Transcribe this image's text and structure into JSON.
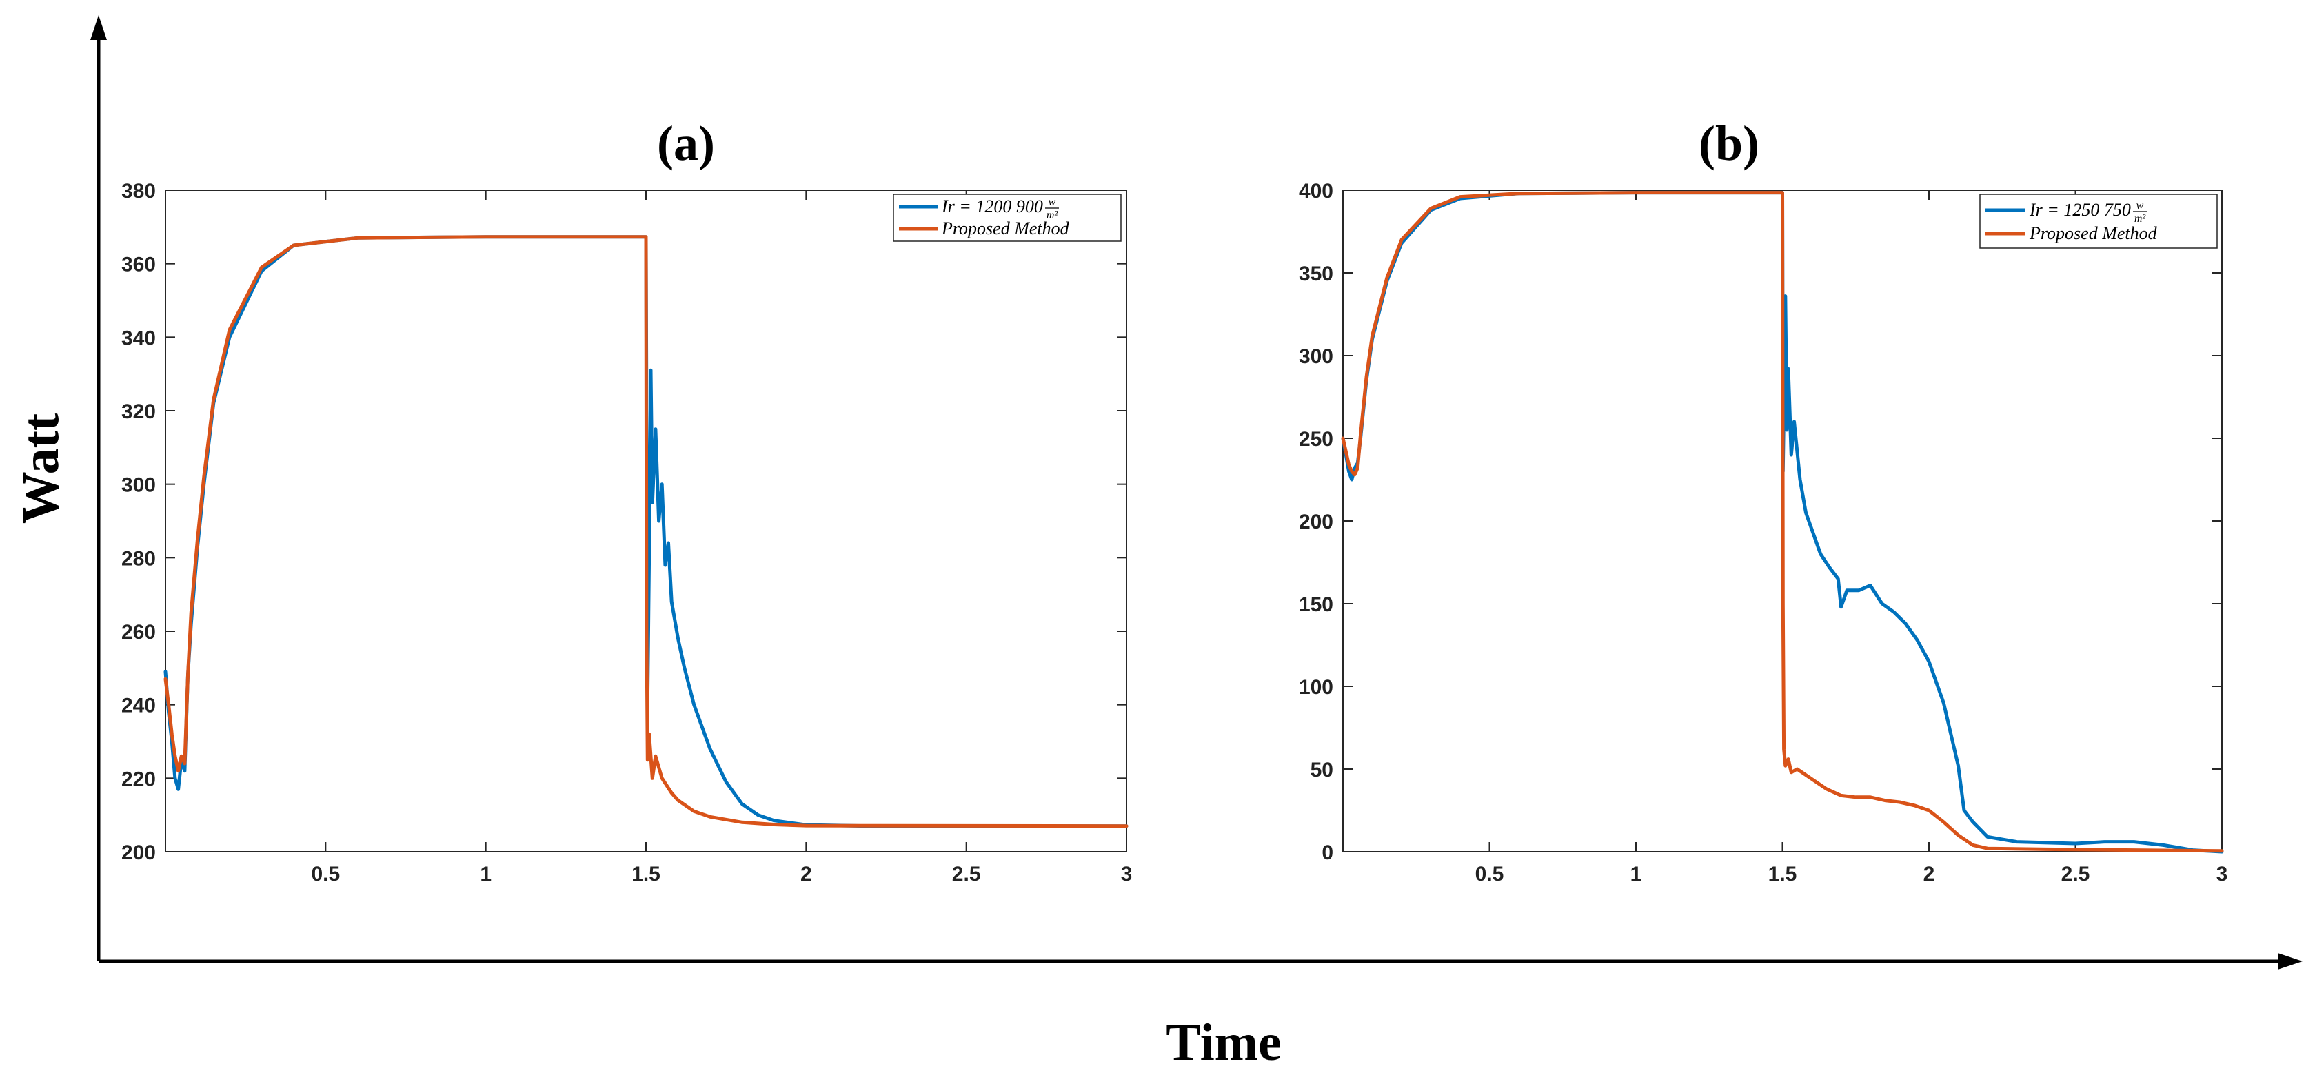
{
  "figure": {
    "outer_xlabel": "Time",
    "outer_ylabel": "Watt"
  },
  "colors": {
    "series_blue": "#0072BD",
    "series_orange": "#D95319",
    "axis": "#000000",
    "tick": "#262626"
  },
  "chart_data": [
    {
      "type": "line",
      "title": "(a)",
      "xlabel": "",
      "ylabel": "",
      "xlim": [
        0,
        3
      ],
      "ylim": [
        200,
        380
      ],
      "xticks": [
        0.5,
        1,
        1.5,
        2,
        2.5,
        3
      ],
      "xtick_labels": [
        "0.5",
        "1",
        "1.5",
        "2",
        "2.5",
        "3"
      ],
      "yticks": [
        200,
        220,
        240,
        260,
        280,
        300,
        320,
        340,
        360,
        380
      ],
      "ytick_labels": [
        "200",
        "220",
        "240",
        "260",
        "280",
        "300",
        "320",
        "340",
        "360",
        "380"
      ],
      "legend_position": "top-right",
      "series": [
        {
          "name": "Ir = 1200 900 w/m²",
          "legend_main": "Ir = 1200 900",
          "legend_frac_num": "w",
          "legend_frac_den": "m²",
          "color": "#0072BD",
          "points": [
            [
              0,
              249
            ],
            [
              0.01,
              238
            ],
            [
              0.02,
              230
            ],
            [
              0.03,
              220
            ],
            [
              0.04,
              217
            ],
            [
              0.05,
              225
            ],
            [
              0.06,
              222
            ],
            [
              0.07,
              248
            ],
            [
              0.08,
              262
            ],
            [
              0.1,
              283
            ],
            [
              0.12,
              300
            ],
            [
              0.15,
              322
            ],
            [
              0.2,
              340
            ],
            [
              0.3,
              358
            ],
            [
              0.4,
              365
            ],
            [
              0.6,
              367
            ],
            [
              1.0,
              367.3
            ],
            [
              1.49,
              367.3
            ],
            [
              1.5,
              367.3
            ],
            [
              1.505,
              240
            ],
            [
              1.51,
              280
            ],
            [
              1.515,
              331
            ],
            [
              1.52,
              295
            ],
            [
              1.53,
              315
            ],
            [
              1.54,
              290
            ],
            [
              1.55,
              300
            ],
            [
              1.56,
              278
            ],
            [
              1.57,
              284
            ],
            [
              1.58,
              268
            ],
            [
              1.6,
              258
            ],
            [
              1.62,
              250
            ],
            [
              1.65,
              240
            ],
            [
              1.7,
              228
            ],
            [
              1.75,
              219
            ],
            [
              1.8,
              213
            ],
            [
              1.85,
              210
            ],
            [
              1.9,
              208.5
            ],
            [
              2.0,
              207.3
            ],
            [
              2.2,
              207
            ],
            [
              3.0,
              207
            ]
          ]
        },
        {
          "name": "Proposed Method",
          "legend_main": "Proposed Method",
          "color": "#D95319",
          "points": [
            [
              0,
              247
            ],
            [
              0.01,
              240
            ],
            [
              0.02,
              232
            ],
            [
              0.03,
              226
            ],
            [
              0.04,
              222
            ],
            [
              0.05,
              226
            ],
            [
              0.06,
              224
            ],
            [
              0.07,
              248
            ],
            [
              0.08,
              265
            ],
            [
              0.1,
              285
            ],
            [
              0.12,
              302
            ],
            [
              0.15,
              323
            ],
            [
              0.2,
              342
            ],
            [
              0.3,
              359
            ],
            [
              0.4,
              365
            ],
            [
              0.6,
              367
            ],
            [
              1.0,
              367.3
            ],
            [
              1.49,
              367.3
            ],
            [
              1.5,
              367.3
            ],
            [
              1.502,
              260
            ],
            [
              1.505,
              225
            ],
            [
              1.51,
              232
            ],
            [
              1.52,
              220
            ],
            [
              1.53,
              226
            ],
            [
              1.55,
              220
            ],
            [
              1.58,
              216
            ],
            [
              1.6,
              214
            ],
            [
              1.65,
              211
            ],
            [
              1.7,
              209.5
            ],
            [
              1.8,
              208
            ],
            [
              1.9,
              207.4
            ],
            [
              2.0,
              207.1
            ],
            [
              3.0,
              207
            ]
          ]
        }
      ]
    },
    {
      "type": "line",
      "title": "(b)",
      "xlabel": "",
      "ylabel": "",
      "xlim": [
        0,
        3
      ],
      "ylim": [
        0,
        400
      ],
      "xticks": [
        0.5,
        1,
        1.5,
        2,
        2.5,
        3
      ],
      "xtick_labels": [
        "0.5",
        "1",
        "1.5",
        "2",
        "2.5",
        "3"
      ],
      "yticks": [
        0,
        50,
        100,
        150,
        200,
        250,
        300,
        350,
        400
      ],
      "ytick_labels": [
        "0",
        "50",
        "100",
        "150",
        "200",
        "250",
        "300",
        "350",
        "400"
      ],
      "legend_position": "top-right",
      "series": [
        {
          "name": "Ir = 1250 750 w/m²",
          "legend_main": "Ir = 1250 750",
          "legend_frac_num": "w",
          "legend_frac_den": "m²",
          "color": "#0072BD",
          "points": [
            [
              0,
              250
            ],
            [
              0.01,
              240
            ],
            [
              0.02,
              230
            ],
            [
              0.03,
              225
            ],
            [
              0.04,
              232
            ],
            [
              0.05,
              235
            ],
            [
              0.06,
              250
            ],
            [
              0.08,
              285
            ],
            [
              0.1,
              310
            ],
            [
              0.15,
              345
            ],
            [
              0.2,
              368
            ],
            [
              0.3,
              388
            ],
            [
              0.4,
              395
            ],
            [
              0.6,
              398
            ],
            [
              1.0,
              398.5
            ],
            [
              1.49,
              398.5
            ],
            [
              1.5,
              398.5
            ],
            [
              1.502,
              230
            ],
            [
              1.51,
              336
            ],
            [
              1.515,
              255
            ],
            [
              1.52,
              292
            ],
            [
              1.53,
              240
            ],
            [
              1.54,
              260
            ],
            [
              1.56,
              225
            ],
            [
              1.58,
              205
            ],
            [
              1.6,
              195
            ],
            [
              1.63,
              180
            ],
            [
              1.66,
              172
            ],
            [
              1.69,
              165
            ],
            [
              1.7,
              148
            ],
            [
              1.72,
              158
            ],
            [
              1.76,
              158
            ],
            [
              1.8,
              161
            ],
            [
              1.84,
              150
            ],
            [
              1.88,
              145
            ],
            [
              1.92,
              138
            ],
            [
              1.96,
              128
            ],
            [
              2.0,
              115
            ],
            [
              2.05,
              90
            ],
            [
              2.1,
              52
            ],
            [
              2.12,
              25
            ],
            [
              2.15,
              18
            ],
            [
              2.2,
              9
            ],
            [
              2.3,
              6
            ],
            [
              2.5,
              5
            ],
            [
              2.6,
              6
            ],
            [
              2.7,
              6
            ],
            [
              2.8,
              4
            ],
            [
              2.9,
              1
            ],
            [
              3.0,
              0
            ]
          ]
        },
        {
          "name": "Proposed Method",
          "legend_main": "Proposed Method",
          "color": "#D95319",
          "points": [
            [
              0,
              250
            ],
            [
              0.01,
              242
            ],
            [
              0.02,
              234
            ],
            [
              0.03,
              230
            ],
            [
              0.04,
              228
            ],
            [
              0.05,
              232
            ],
            [
              0.06,
              252
            ],
            [
              0.08,
              287
            ],
            [
              0.1,
              312
            ],
            [
              0.15,
              347
            ],
            [
              0.2,
              370
            ],
            [
              0.3,
              389
            ],
            [
              0.4,
              396
            ],
            [
              0.6,
              398
            ],
            [
              1.0,
              398.5
            ],
            [
              1.49,
              398.5
            ],
            [
              1.5,
              398.5
            ],
            [
              1.502,
              150
            ],
            [
              1.505,
              62
            ],
            [
              1.51,
              52
            ],
            [
              1.52,
              56
            ],
            [
              1.53,
              48
            ],
            [
              1.55,
              50
            ],
            [
              1.6,
              44
            ],
            [
              1.65,
              38
            ],
            [
              1.7,
              34
            ],
            [
              1.75,
              33
            ],
            [
              1.8,
              33
            ],
            [
              1.85,
              31
            ],
            [
              1.9,
              30
            ],
            [
              1.95,
              28
            ],
            [
              2.0,
              25
            ],
            [
              2.05,
              18
            ],
            [
              2.1,
              10
            ],
            [
              2.15,
              4
            ],
            [
              2.2,
              2
            ],
            [
              2.4,
              1.5
            ],
            [
              2.7,
              1
            ],
            [
              3.0,
              0.5
            ]
          ]
        }
      ]
    }
  ]
}
